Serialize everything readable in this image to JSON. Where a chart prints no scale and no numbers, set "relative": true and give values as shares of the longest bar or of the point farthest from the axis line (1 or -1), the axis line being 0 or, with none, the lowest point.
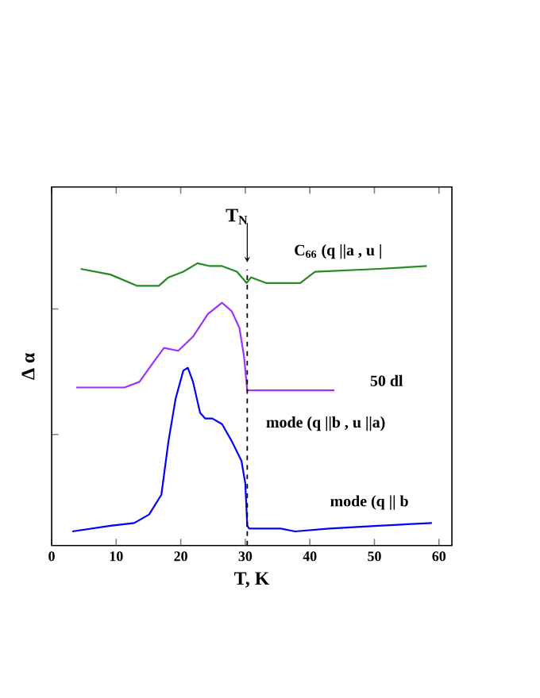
{
  "chart_data": {
    "type": "line",
    "relative": true,
    "xlabel": "T, K",
    "ylabel": "Δ α",
    "xlim": [
      0,
      62
    ],
    "xticks": [
      0,
      10,
      20,
      30,
      40,
      50,
      60
    ],
    "marker": "none",
    "line_style": "solid",
    "series": [
      {
        "color": "#0000ff",
        "x": [
          3.2,
          9.1,
          12.8,
          15.1,
          17.0,
          18.1,
          19.2,
          20.4,
          21.1,
          21.9,
          23.0,
          23.8,
          24.9,
          26.4,
          27.9,
          29.4,
          30.0,
          30.3,
          30.6,
          35.5,
          37.7,
          43.0,
          50.6,
          58.9
        ],
        "values": [
          0.05,
          0.07,
          0.08,
          0.11,
          0.18,
          0.37,
          0.52,
          0.62,
          0.63,
          0.58,
          0.47,
          0.45,
          0.45,
          0.43,
          0.37,
          0.3,
          0.22,
          0.07,
          0.06,
          0.06,
          0.05,
          0.06,
          0.07,
          0.08
        ]
      },
      {
        "color": "#9933ff",
        "x": [
          3.8,
          6.8,
          11.3,
          13.6,
          15.8,
          17.4,
          19.6,
          21.9,
          24.2,
          26.4,
          27.9,
          29.1,
          29.8,
          30.3,
          35.5,
          43.8
        ],
        "values": [
          0.56,
          0.56,
          0.56,
          0.58,
          0.65,
          0.7,
          0.69,
          0.74,
          0.82,
          0.86,
          0.83,
          0.77,
          0.67,
          0.55,
          0.55,
          0.55
        ]
      },
      {
        "color": "#228b22",
        "x": [
          4.5,
          9.1,
          13.2,
          16.6,
          18.1,
          20.4,
          22.6,
          24.5,
          26.4,
          28.7,
          30.2,
          30.9,
          33.2,
          38.5,
          40.8,
          50.6,
          58.1
        ],
        "values": [
          0.98,
          0.96,
          0.92,
          0.92,
          0.95,
          0.97,
          1.0,
          0.99,
          0.99,
          0.97,
          0.93,
          0.95,
          0.93,
          0.93,
          0.97,
          0.98,
          0.99
        ]
      }
    ],
    "ref_lines": [
      {
        "axis": "x",
        "value": 30.3,
        "label": "T$_{N}$",
        "line_style": "dashed",
        "color": "#000000"
      }
    ],
    "annotations": [
      "C$_{66}$ (q ||a , u |",
      "50 dl",
      "mode (q ||b , u ||a)",
      "mode (q || b"
    ]
  }
}
